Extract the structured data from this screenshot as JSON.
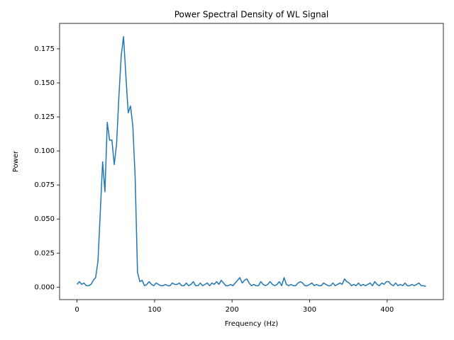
{
  "chart_data": {
    "type": "line",
    "title": "Power Spectral Density of WL Signal",
    "x_label": "Frequency (Hz)",
    "y_label": "Power",
    "xlim": [
      -22.5,
      472.5
    ],
    "ylim": [
      -0.0092,
      0.1937
    ],
    "xticks": [
      0,
      100,
      200,
      300,
      400
    ],
    "yticks": [
      {
        "value": 0,
        "label": "0.000"
      },
      {
        "value": 0.025,
        "label": "0.025"
      },
      {
        "value": 0.05,
        "label": "0.050"
      },
      {
        "value": 0.075,
        "label": "0.075"
      },
      {
        "value": 0.1,
        "label": "0.100"
      },
      {
        "value": 0.125,
        "label": "0.125"
      },
      {
        "value": 0.15,
        "label": "0.150"
      },
      {
        "value": 0.175,
        "label": "0.175"
      }
    ],
    "x": [
      0,
      3,
      6,
      9,
      12,
      15,
      18,
      21,
      24,
      27,
      30,
      33,
      36,
      39,
      42,
      45,
      48,
      51,
      54,
      57,
      60,
      63,
      66,
      69,
      72,
      75,
      78,
      81,
      84,
      87,
      90,
      93,
      96,
      99,
      102,
      105,
      108,
      111,
      114,
      117,
      120,
      123,
      126,
      129,
      132,
      135,
      138,
      141,
      144,
      147,
      150,
      153,
      156,
      159,
      162,
      165,
      168,
      171,
      174,
      177,
      180,
      183,
      186,
      189,
      192,
      195,
      198,
      201,
      204,
      207,
      210,
      213,
      216,
      219,
      222,
      225,
      228,
      231,
      234,
      237,
      240,
      243,
      246,
      249,
      252,
      255,
      258,
      261,
      264,
      267,
      270,
      273,
      276,
      279,
      282,
      285,
      288,
      291,
      294,
      297,
      300,
      303,
      306,
      309,
      312,
      315,
      318,
      321,
      324,
      327,
      330,
      333,
      336,
      339,
      342,
      345,
      348,
      351,
      354,
      357,
      360,
      363,
      366,
      369,
      372,
      375,
      378,
      381,
      384,
      387,
      390,
      393,
      396,
      399,
      402,
      405,
      408,
      411,
      414,
      417,
      420,
      423,
      426,
      429,
      432,
      435,
      438,
      441,
      444,
      447,
      450
    ],
    "series": [
      {
        "color": "#1f77b4",
        "values": [
          0.002,
          0.004,
          0.002,
          0.003,
          0.001,
          0.001,
          0.002,
          0.005,
          0.007,
          0.019,
          0.055,
          0.092,
          0.07,
          0.121,
          0.108,
          0.108,
          0.09,
          0.105,
          0.14,
          0.17,
          0.184,
          0.155,
          0.128,
          0.133,
          0.118,
          0.08,
          0.011,
          0.004,
          0.005,
          0.001,
          0.002,
          0.004,
          0.002,
          0.001,
          0.003,
          0.002,
          0.001,
          0.001,
          0.002,
          0.001,
          0.001,
          0.003,
          0.002,
          0.002,
          0.003,
          0.001,
          0.001,
          0.003,
          0.001,
          0.002,
          0.004,
          0.001,
          0.001,
          0.003,
          0.001,
          0.002,
          0.003,
          0.001,
          0.003,
          0.002,
          0.004,
          0.002,
          0.005,
          0.003,
          0.001,
          0.001,
          0.002,
          0.001,
          0.003,
          0.005,
          0.007,
          0.003,
          0.005,
          0.006,
          0.003,
          0.001,
          0.002,
          0.001,
          0.001,
          0.004,
          0.002,
          0.001,
          0.002,
          0.004,
          0.002,
          0.001,
          0.002,
          0.004,
          0.001,
          0.007,
          0.002,
          0.001,
          0.002,
          0.001,
          0.001,
          0.003,
          0.004,
          0.003,
          0.001,
          0.001,
          0.002,
          0.003,
          0.001,
          0.002,
          0.001,
          0.001,
          0.003,
          0.002,
          0.001,
          0.001,
          0.003,
          0.001,
          0.002,
          0.003,
          0.002,
          0.006,
          0.004,
          0.003,
          0.001,
          0.002,
          0.001,
          0.003,
          0.001,
          0.002,
          0.001,
          0.002,
          0.003,
          0.001,
          0.004,
          0.002,
          0.001,
          0.003,
          0.002,
          0.004,
          0.004,
          0.002,
          0.001,
          0.003,
          0.001,
          0.002,
          0.001,
          0.003,
          0.001,
          0.001,
          0.002,
          0.001,
          0.002,
          0.003,
          0.001,
          0.001,
          0.0005
        ]
      }
    ]
  }
}
